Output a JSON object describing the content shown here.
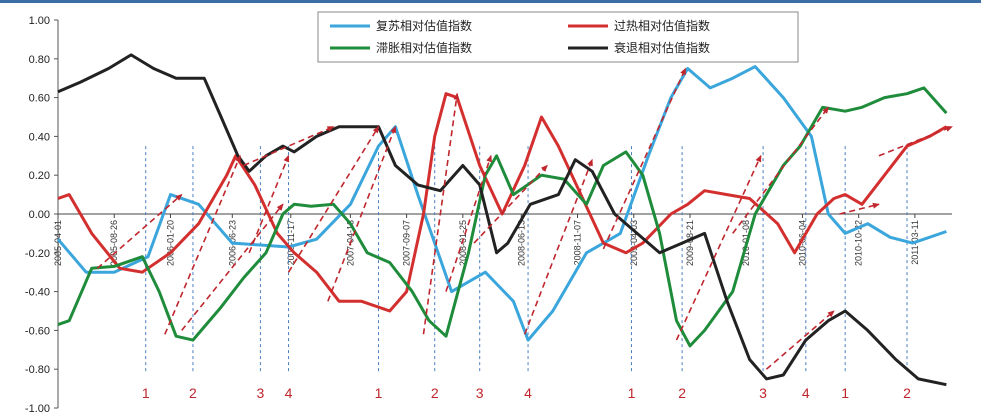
{
  "chart_data": {
    "type": "line",
    "title": "",
    "xlabel": "",
    "ylabel": "",
    "ylim": [
      -1.0,
      1.0
    ],
    "y_ticks": [
      "1.00",
      "0.80",
      "0.60",
      "0.40",
      "0.20",
      "0.00",
      "-0.20",
      "-0.40",
      "-0.60",
      "-0.80",
      "-1.00"
    ],
    "x_date_labels": [
      {
        "text": "2005-04-01",
        "t": 0.0
      },
      {
        "text": "2005-08-26",
        "t": 0.5
      },
      {
        "text": "2006-01-20",
        "t": 1.0
      },
      {
        "text": "2006-06-23",
        "t": 1.55
      },
      {
        "text": "2006-11-17",
        "t": 2.07
      },
      {
        "text": "2007-04-13",
        "t": 2.6
      },
      {
        "text": "2007-09-07",
        "t": 3.1
      },
      {
        "text": "2008-01-25",
        "t": 3.6
      },
      {
        "text": "2008-06-13",
        "t": 4.12
      },
      {
        "text": "2008-11-07",
        "t": 4.62
      },
      {
        "text": "2009-04-03",
        "t": 5.12
      },
      {
        "text": "2009-08-21",
        "t": 5.62
      },
      {
        "text": "2010-01-08",
        "t": 6.12
      },
      {
        "text": "2010-06-04",
        "t": 6.62
      },
      {
        "text": "2010-10-22",
        "t": 7.12
      },
      {
        "text": "2011-03-11",
        "t": 7.62
      }
    ],
    "legend": {
      "placement": "top-center",
      "columns": 2
    },
    "series": [
      {
        "name": "复苏相对估值指数",
        "color": "#3aa6dc",
        "points": [
          [
            0,
            -0.13
          ],
          [
            0.25,
            -0.3
          ],
          [
            0.5,
            -0.3
          ],
          [
            0.8,
            -0.22
          ],
          [
            1.0,
            0.1
          ],
          [
            1.25,
            0.05
          ],
          [
            1.55,
            -0.15
          ],
          [
            1.8,
            -0.16
          ],
          [
            2.05,
            -0.17
          ],
          [
            2.3,
            -0.13
          ],
          [
            2.6,
            0.05
          ],
          [
            2.85,
            0.35
          ],
          [
            3.0,
            0.45
          ],
          [
            3.2,
            0.1
          ],
          [
            3.5,
            -0.4
          ],
          [
            3.8,
            -0.3
          ],
          [
            4.05,
            -0.45
          ],
          [
            4.18,
            -0.65
          ],
          [
            4.4,
            -0.5
          ],
          [
            4.7,
            -0.2
          ],
          [
            5.0,
            -0.1
          ],
          [
            5.25,
            0.3
          ],
          [
            5.45,
            0.6
          ],
          [
            5.6,
            0.75
          ],
          [
            5.8,
            0.65
          ],
          [
            6.0,
            0.7
          ],
          [
            6.2,
            0.76
          ],
          [
            6.45,
            0.6
          ],
          [
            6.7,
            0.4
          ],
          [
            6.85,
            0.0
          ],
          [
            7.0,
            -0.1
          ],
          [
            7.2,
            -0.05
          ],
          [
            7.4,
            -0.12
          ],
          [
            7.6,
            -0.15
          ],
          [
            7.9,
            -0.09
          ]
        ]
      },
      {
        "name": "过热相对估值指数",
        "color": "#d32f2f",
        "points": [
          [
            0,
            0.08
          ],
          [
            0.1,
            0.1
          ],
          [
            0.3,
            -0.1
          ],
          [
            0.55,
            -0.28
          ],
          [
            0.75,
            -0.3
          ],
          [
            1.0,
            -0.2
          ],
          [
            1.25,
            -0.05
          ],
          [
            1.5,
            0.2
          ],
          [
            1.58,
            0.3
          ],
          [
            1.75,
            0.15
          ],
          [
            1.95,
            -0.1
          ],
          [
            2.1,
            -0.2
          ],
          [
            2.3,
            -0.3
          ],
          [
            2.5,
            -0.45
          ],
          [
            2.7,
            -0.45
          ],
          [
            2.95,
            -0.5
          ],
          [
            3.1,
            -0.4
          ],
          [
            3.25,
            0.0
          ],
          [
            3.35,
            0.4
          ],
          [
            3.45,
            0.62
          ],
          [
            3.55,
            0.6
          ],
          [
            3.75,
            0.25
          ],
          [
            3.95,
            0.0
          ],
          [
            4.15,
            0.25
          ],
          [
            4.3,
            0.5
          ],
          [
            4.45,
            0.35
          ],
          [
            4.65,
            0.1
          ],
          [
            4.85,
            -0.15
          ],
          [
            5.05,
            -0.2
          ],
          [
            5.2,
            -0.15
          ],
          [
            5.45,
            0.0
          ],
          [
            5.6,
            0.05
          ],
          [
            5.75,
            0.12
          ],
          [
            5.95,
            0.1
          ],
          [
            6.15,
            0.08
          ],
          [
            6.4,
            -0.05
          ],
          [
            6.55,
            -0.2
          ],
          [
            6.75,
            0.0
          ],
          [
            6.9,
            0.08
          ],
          [
            7.0,
            0.1
          ],
          [
            7.15,
            0.05
          ],
          [
            7.35,
            0.2
          ],
          [
            7.55,
            0.35
          ],
          [
            7.75,
            0.4
          ],
          [
            7.9,
            0.45
          ]
        ]
      },
      {
        "name": "滞胀相对估值指数",
        "color": "#1f8c3b",
        "points": [
          [
            0,
            -0.57
          ],
          [
            0.1,
            -0.55
          ],
          [
            0.3,
            -0.28
          ],
          [
            0.5,
            -0.27
          ],
          [
            0.75,
            -0.22
          ],
          [
            0.9,
            -0.4
          ],
          [
            1.05,
            -0.63
          ],
          [
            1.2,
            -0.65
          ],
          [
            1.45,
            -0.48
          ],
          [
            1.65,
            -0.33
          ],
          [
            1.85,
            -0.2
          ],
          [
            2.0,
            0.0
          ],
          [
            2.1,
            0.05
          ],
          [
            2.25,
            0.04
          ],
          [
            2.45,
            0.05
          ],
          [
            2.6,
            -0.05
          ],
          [
            2.75,
            -0.2
          ],
          [
            2.95,
            -0.25
          ],
          [
            3.15,
            -0.4
          ],
          [
            3.3,
            -0.55
          ],
          [
            3.45,
            -0.63
          ],
          [
            3.65,
            -0.2
          ],
          [
            3.8,
            0.2
          ],
          [
            3.9,
            0.3
          ],
          [
            4.05,
            0.1
          ],
          [
            4.3,
            0.2
          ],
          [
            4.5,
            0.18
          ],
          [
            4.7,
            0.05
          ],
          [
            4.85,
            0.25
          ],
          [
            5.05,
            0.32
          ],
          [
            5.2,
            0.2
          ],
          [
            5.35,
            -0.1
          ],
          [
            5.5,
            -0.55
          ],
          [
            5.62,
            -0.68
          ],
          [
            5.75,
            -0.6
          ],
          [
            6.0,
            -0.4
          ],
          [
            6.2,
            0.0
          ],
          [
            6.45,
            0.25
          ],
          [
            6.6,
            0.35
          ],
          [
            6.8,
            0.55
          ],
          [
            7.0,
            0.53
          ],
          [
            7.15,
            0.55
          ],
          [
            7.35,
            0.6
          ],
          [
            7.55,
            0.62
          ],
          [
            7.7,
            0.65
          ],
          [
            7.9,
            0.52
          ]
        ]
      },
      {
        "name": "衰退相对估值指数",
        "color": "#222222",
        "points": [
          [
            0,
            0.63
          ],
          [
            0.2,
            0.68
          ],
          [
            0.45,
            0.75
          ],
          [
            0.65,
            0.82
          ],
          [
            0.85,
            0.75
          ],
          [
            1.05,
            0.7
          ],
          [
            1.3,
            0.7
          ],
          [
            1.45,
            0.5
          ],
          [
            1.6,
            0.3
          ],
          [
            1.7,
            0.22
          ],
          [
            1.85,
            0.3
          ],
          [
            2.0,
            0.35
          ],
          [
            2.1,
            0.32
          ],
          [
            2.3,
            0.4
          ],
          [
            2.5,
            0.45
          ],
          [
            2.7,
            0.45
          ],
          [
            2.85,
            0.45
          ],
          [
            3.0,
            0.25
          ],
          [
            3.2,
            0.15
          ],
          [
            3.4,
            0.12
          ],
          [
            3.6,
            0.25
          ],
          [
            3.75,
            0.15
          ],
          [
            3.9,
            -0.2
          ],
          [
            4.0,
            -0.15
          ],
          [
            4.2,
            0.05
          ],
          [
            4.45,
            0.1
          ],
          [
            4.6,
            0.28
          ],
          [
            4.75,
            0.22
          ],
          [
            4.95,
            0.0
          ],
          [
            5.15,
            -0.1
          ],
          [
            5.35,
            -0.2
          ],
          [
            5.55,
            -0.15
          ],
          [
            5.75,
            -0.1
          ],
          [
            5.95,
            -0.45
          ],
          [
            6.15,
            -0.75
          ],
          [
            6.3,
            -0.85
          ],
          [
            6.45,
            -0.83
          ],
          [
            6.65,
            -0.65
          ],
          [
            6.85,
            -0.55
          ],
          [
            7.0,
            -0.5
          ],
          [
            7.2,
            -0.6
          ],
          [
            7.45,
            -0.75
          ],
          [
            7.65,
            -0.85
          ],
          [
            7.9,
            -0.88
          ]
        ]
      }
    ],
    "arrows_color": "#c0262d",
    "arrows": [
      {
        "from": [
          0.35,
          -0.28
        ],
        "to": [
          1.1,
          0.1
        ]
      },
      {
        "from": [
          1.1,
          -0.6
        ],
        "to": [
          2.0,
          0.05
        ]
      },
      {
        "from": [
          0.95,
          -0.62
        ],
        "to": [
          1.62,
          0.3
        ]
      },
      {
        "from": [
          1.7,
          -0.2
        ],
        "to": [
          2.05,
          0.3
        ]
      },
      {
        "from": [
          1.65,
          0.25
        ],
        "to": [
          2.45,
          0.45
        ]
      },
      {
        "from": [
          2.05,
          -0.3
        ],
        "to": [
          2.85,
          0.45
        ]
      },
      {
        "from": [
          2.4,
          -0.45
        ],
        "to": [
          3.0,
          0.45
        ]
      },
      {
        "from": [
          3.25,
          -0.62
        ],
        "to": [
          3.55,
          0.62
        ]
      },
      {
        "from": [
          3.45,
          -0.4
        ],
        "to": [
          3.85,
          0.3
        ]
      },
      {
        "from": [
          3.7,
          -0.15
        ],
        "to": [
          4.35,
          0.25
        ]
      },
      {
        "from": [
          4.15,
          -0.62
        ],
        "to": [
          4.75,
          0.28
        ]
      },
      {
        "from": [
          4.85,
          -0.18
        ],
        "to": [
          5.58,
          0.75
        ]
      },
      {
        "from": [
          5.5,
          -0.65
        ],
        "to": [
          6.25,
          0.3
        ]
      },
      {
        "from": [
          6.0,
          -0.1
        ],
        "to": [
          6.85,
          0.55
        ]
      },
      {
        "from": [
          6.3,
          -0.8
        ],
        "to": [
          6.9,
          -0.5
        ]
      },
      {
        "from": [
          6.95,
          0.0
        ],
        "to": [
          7.3,
          0.05
        ]
      },
      {
        "from": [
          7.3,
          0.3
        ],
        "to": [
          7.95,
          0.45
        ]
      }
    ],
    "phase_markers": [
      {
        "label": "1",
        "t": 0.78
      },
      {
        "label": "2",
        "t": 1.2
      },
      {
        "label": "3",
        "t": 1.8
      },
      {
        "label": "4",
        "t": 2.05
      },
      {
        "label": "1",
        "t": 2.85
      },
      {
        "label": "2",
        "t": 3.35
      },
      {
        "label": "3",
        "t": 3.75
      },
      {
        "label": "4",
        "t": 4.18
      },
      {
        "label": "1",
        "t": 5.1
      },
      {
        "label": "2",
        "t": 5.55
      },
      {
        "label": "3",
        "t": 6.27
      },
      {
        "label": "4",
        "t": 6.65
      },
      {
        "label": "1",
        "t": 7.0
      },
      {
        "label": "2",
        "t": 7.55
      }
    ]
  }
}
